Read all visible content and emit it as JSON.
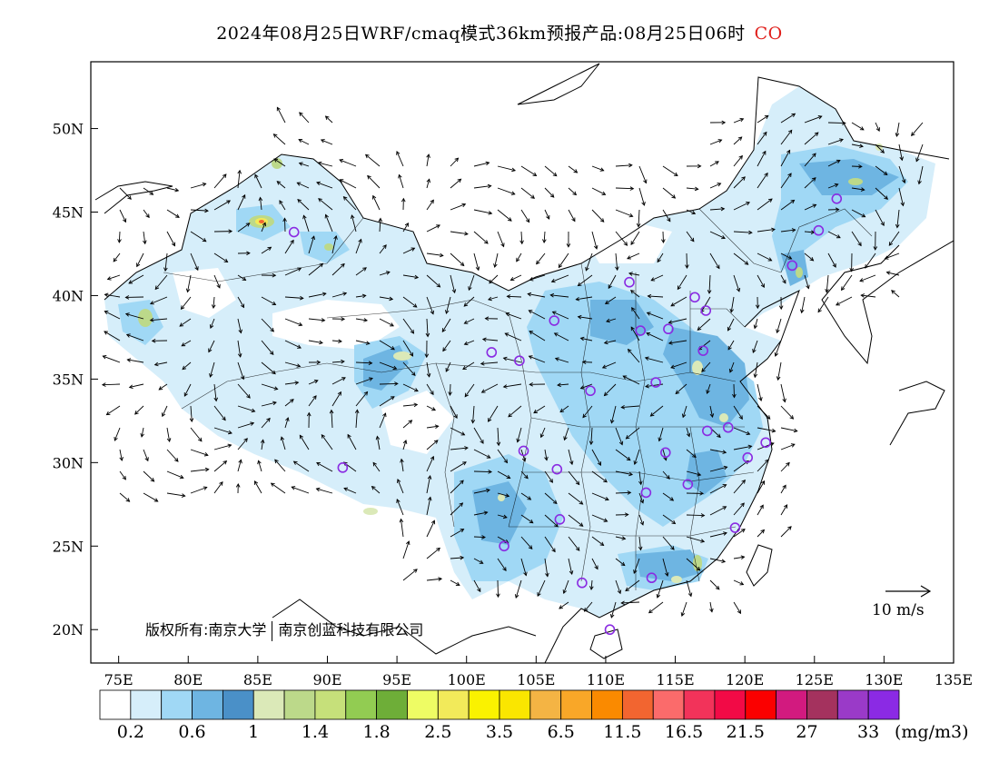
{
  "title": {
    "main": "2024年08月25日WRF/cmaq模式36km预报产品:08月25日06时",
    "species": "CO",
    "species_color": "#e0201c"
  },
  "map": {
    "lon_range": [
      73,
      135
    ],
    "lat_range": [
      18,
      54
    ],
    "lat_ticks": [
      "50N",
      "45N",
      "40N",
      "35N",
      "30N",
      "25N",
      "20N"
    ],
    "lon_ticks": [
      "75E",
      "80E",
      "85E",
      "90E",
      "95E",
      "100E",
      "105E",
      "110E",
      "115E",
      "120E",
      "125E",
      "130E",
      "135E"
    ],
    "copyright_left": "版权所有:南京大学",
    "copyright_right": "南京创蓝科技有限公司",
    "reference_vector_label": "10 m/s"
  },
  "colorbar": {
    "colors": [
      "#ffffff",
      "#d6eefa",
      "#a0d8f5",
      "#6eb5e2",
      "#4a90c8",
      "#dbe9b8",
      "#bcd98a",
      "#c6e07a",
      "#92cc52",
      "#6eae38",
      "#eefc64",
      "#f2ea5a",
      "#faf200",
      "#fae600",
      "#f4b444",
      "#f9a728",
      "#fa8a00",
      "#f26530",
      "#fb6b6b",
      "#f2335a",
      "#f20a46",
      "#fb0000",
      "#d21a7f",
      "#a4325e",
      "#9a3ac8",
      "#8b2ae4"
    ],
    "labels": [
      "0.2",
      "0.6",
      "1",
      "1.4",
      "1.8",
      "2.5",
      "3.5",
      "6.5",
      "11.5",
      "16.5",
      "21.5",
      "27",
      "33"
    ],
    "unit": "(mg/m3)"
  },
  "stations": [
    {
      "lon": 87.6,
      "lat": 43.8
    },
    {
      "lon": 91.1,
      "lat": 29.7
    },
    {
      "lon": 101.8,
      "lat": 36.6
    },
    {
      "lon": 103.8,
      "lat": 36.1
    },
    {
      "lon": 106.3,
      "lat": 38.5
    },
    {
      "lon": 111.7,
      "lat": 40.8
    },
    {
      "lon": 112.5,
      "lat": 37.9
    },
    {
      "lon": 114.5,
      "lat": 38.0
    },
    {
      "lon": 116.4,
      "lat": 39.9
    },
    {
      "lon": 117.2,
      "lat": 39.1
    },
    {
      "lon": 117.0,
      "lat": 36.7
    },
    {
      "lon": 113.6,
      "lat": 34.8
    },
    {
      "lon": 108.9,
      "lat": 34.3
    },
    {
      "lon": 104.1,
      "lat": 30.7
    },
    {
      "lon": 106.5,
      "lat": 29.6
    },
    {
      "lon": 106.7,
      "lat": 26.6
    },
    {
      "lon": 102.7,
      "lat": 25.0
    },
    {
      "lon": 108.3,
      "lat": 22.8
    },
    {
      "lon": 113.3,
      "lat": 23.1
    },
    {
      "lon": 110.3,
      "lat": 20.0
    },
    {
      "lon": 112.9,
      "lat": 28.2
    },
    {
      "lon": 114.3,
      "lat": 30.6
    },
    {
      "lon": 115.9,
      "lat": 28.7
    },
    {
      "lon": 117.3,
      "lat": 31.9
    },
    {
      "lon": 118.8,
      "lat": 32.1
    },
    {
      "lon": 121.5,
      "lat": 31.2
    },
    {
      "lon": 120.2,
      "lat": 30.3
    },
    {
      "lon": 119.3,
      "lat": 26.1
    },
    {
      "lon": 123.4,
      "lat": 41.8
    },
    {
      "lon": 125.3,
      "lat": 43.9
    },
    {
      "lon": 126.6,
      "lat": 45.8
    }
  ]
}
